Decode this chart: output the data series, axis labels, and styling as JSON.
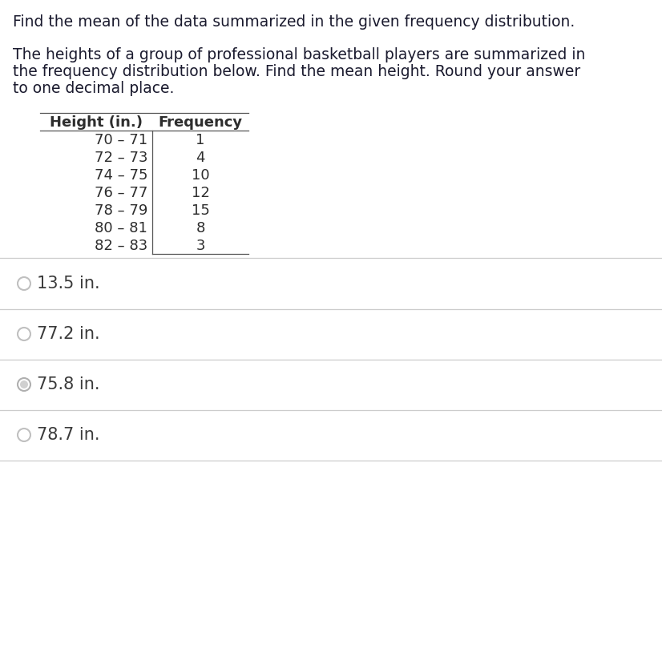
{
  "title_line1": "Find the mean of the data summarized in the given frequency distribution.",
  "body_text": "The heights of a group of professional basketball players are summarized in\nthe frequency distribution below. Find the mean height. Round your answer\nto one decimal place.",
  "table_header": [
    "Height (in.)",
    "Frequency"
  ],
  "table_rows": [
    [
      "70 – 71",
      "1"
    ],
    [
      "72 – 73",
      "4"
    ],
    [
      "74 – 75",
      "10"
    ],
    [
      "76 – 77",
      "12"
    ],
    [
      "78 – 79",
      "15"
    ],
    [
      "80 – 81",
      "8"
    ],
    [
      "82 – 83",
      "3"
    ]
  ],
  "choices": [
    {
      "text": "13.5 in.",
      "selected": false
    },
    {
      "text": "77.2 in.",
      "selected": false
    },
    {
      "text": "75.8 in.",
      "selected": true
    },
    {
      "text": "78.7 in.",
      "selected": false
    }
  ],
  "bg_color": "#ffffff",
  "text_color": "#1a1a2e",
  "table_text_color": "#2d2d2d",
  "choice_text_color": "#3a3a3a",
  "sep_color": "#cccccc",
  "radio_empty_edge": "#c0c0c0",
  "radio_selected_edge": "#b0b0b0",
  "radio_selected_fill": "#d0d0d0",
  "font_size_title": 13.5,
  "font_size_body": 13.5,
  "font_size_table_header": 13,
  "font_size_table_rows": 13,
  "font_size_choices": 15
}
